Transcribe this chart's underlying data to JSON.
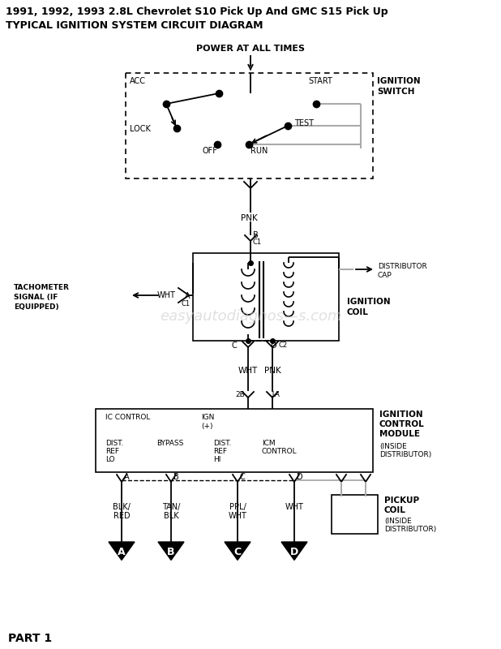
{
  "title_line1": "1991, 1992, 1993 2.8L Chevrolet S10 Pick Up And GMC S15 Pick Up",
  "title_line2": "TYPICAL IGNITION SYSTEM CIRCUIT DIAGRAM",
  "bg_color": "#ffffff",
  "text_color": "#000000",
  "line_color": "#000000",
  "gray_color": "#aaaaaa",
  "watermark": "easyautodiagnos—s.com",
  "power_label": "POWER AT ALL TIMES",
  "ignition_switch_label": [
    "IGNITION",
    "SWITCH"
  ],
  "pnk_label": "PNK",
  "ignition_coil_label": [
    "IGNITION",
    "COIL"
  ],
  "distributor_cap_label": [
    "DISTRIBUTOR",
    "CAP"
  ],
  "tachometer_label": [
    "TACHOMETER",
    "SIGNAL (IF",
    "EQUIPPED)"
  ],
  "wht_label": "WHT",
  "iccontrol_label": "IC CONTROL",
  "ign_label": [
    "IGN",
    "(+)"
  ],
  "dist_ref_lo": [
    "DIST.",
    "REF",
    "LO"
  ],
  "bypass_label": "BYPASS",
  "dist_ref_hi": [
    "DIST.",
    "REF",
    "HI"
  ],
  "icm_control": [
    "ICM",
    "CONTROL"
  ],
  "icm_module_label": [
    "IGNITION",
    "CONTROL",
    "MODULE"
  ],
  "inside_dist": "(INSIDE",
  "inside_dist2": "DISTRIBUTOR)",
  "pickup_coil_label": [
    "PICKUP",
    "COIL"
  ],
  "part1_label": "PART 1",
  "wire_labels": [
    "BLK/",
    "RED",
    "TAN/",
    "BLK",
    "PPL/",
    "WHT",
    "WHT",
    ""
  ],
  "terminal_letters": [
    "A",
    "B",
    "C",
    "D"
  ]
}
